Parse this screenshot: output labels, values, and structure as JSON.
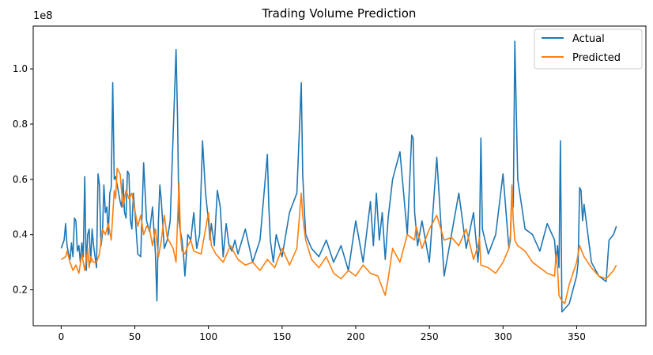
{
  "chart_data": {
    "type": "line",
    "title": "Trading Volume Prediction",
    "xlabel": "",
    "ylabel": "",
    "y_offset_label": "1e8",
    "xlim": [
      -19,
      397
    ],
    "ylim": [
      0.07,
      1.155
    ],
    "x_ticks": [
      0,
      50,
      100,
      150,
      200,
      250,
      300,
      350
    ],
    "x_tick_labels": [
      "0",
      "50",
      "100",
      "150",
      "200",
      "250",
      "300",
      "350"
    ],
    "y_ticks": [
      0.2,
      0.4,
      0.6,
      0.8,
      1.0
    ],
    "y_tick_labels": [
      "0.2",
      "0.4",
      "0.6",
      "0.8",
      "1.0"
    ],
    "legend": {
      "position": "top-right"
    },
    "grid": false,
    "series": [
      {
        "name": "Actual",
        "color": "#1f77b4",
        "x": [
          0,
          2,
          3,
          4,
          5,
          6,
          7,
          8,
          9,
          10,
          11,
          12,
          13,
          14,
          15,
          16,
          17,
          18,
          19,
          20,
          21,
          22,
          23,
          24,
          25,
          26,
          27,
          28,
          29,
          30,
          31,
          32,
          33,
          34,
          35,
          36,
          37,
          38,
          39,
          40,
          41,
          42,
          43,
          44,
          45,
          46,
          47,
          48,
          49,
          50,
          52,
          54,
          56,
          58,
          60,
          62,
          64,
          65,
          66,
          67,
          68,
          70,
          72,
          74,
          76,
          78,
          79,
          80,
          81,
          82,
          83,
          84,
          86,
          88,
          90,
          92,
          94,
          96,
          98,
          100,
          101,
          102,
          104,
          106,
          108,
          110,
          112,
          114,
          116,
          118,
          120,
          125,
          130,
          135,
          140,
          141,
          142,
          143,
          144,
          145,
          146,
          150,
          155,
          160,
          163,
          164,
          165,
          166,
          170,
          175,
          180,
          185,
          190,
          195,
          200,
          205,
          210,
          212,
          214,
          216,
          218,
          220,
          222,
          225,
          230,
          235,
          238,
          239,
          240,
          241,
          242,
          245,
          250,
          255,
          260,
          265,
          270,
          275,
          280,
          283,
          284,
          285,
          286,
          290,
          295,
          300,
          304,
          305,
          306,
          307,
          308,
          310,
          315,
          320,
          325,
          330,
          335,
          336,
          337,
          338,
          339,
          340,
          345,
          350,
          351,
          352,
          353,
          354,
          355,
          360,
          365,
          370,
          372,
          375,
          377
        ],
        "values": [
          0.35,
          0.38,
          0.44,
          0.36,
          0.33,
          0.31,
          0.37,
          0.32,
          0.46,
          0.45,
          0.34,
          0.36,
          0.3,
          0.37,
          0.32,
          0.61,
          0.27,
          0.4,
          0.42,
          0.3,
          0.42,
          0.36,
          0.32,
          0.28,
          0.62,
          0.58,
          0.36,
          0.4,
          0.58,
          0.48,
          0.5,
          0.4,
          0.55,
          0.57,
          0.95,
          0.6,
          0.61,
          0.58,
          0.55,
          0.52,
          0.5,
          0.6,
          0.48,
          0.46,
          0.63,
          0.62,
          0.45,
          0.42,
          0.55,
          0.49,
          0.33,
          0.32,
          0.66,
          0.45,
          0.41,
          0.5,
          0.33,
          0.16,
          0.45,
          0.58,
          0.52,
          0.35,
          0.38,
          0.45,
          0.76,
          1.07,
          0.82,
          0.45,
          0.41,
          0.38,
          0.33,
          0.25,
          0.4,
          0.38,
          0.48,
          0.35,
          0.4,
          0.74,
          0.55,
          0.45,
          0.38,
          0.44,
          0.36,
          0.56,
          0.5,
          0.32,
          0.44,
          0.36,
          0.34,
          0.38,
          0.33,
          0.42,
          0.3,
          0.38,
          0.69,
          0.5,
          0.38,
          0.34,
          0.3,
          0.35,
          0.4,
          0.32,
          0.48,
          0.55,
          0.95,
          0.62,
          0.5,
          0.4,
          0.35,
          0.32,
          0.38,
          0.3,
          0.36,
          0.27,
          0.45,
          0.3,
          0.52,
          0.36,
          0.55,
          0.38,
          0.48,
          0.31,
          0.46,
          0.6,
          0.7,
          0.4,
          0.76,
          0.75,
          0.48,
          0.42,
          0.36,
          0.45,
          0.3,
          0.68,
          0.25,
          0.4,
          0.55,
          0.35,
          0.48,
          0.3,
          0.38,
          0.75,
          0.42,
          0.33,
          0.4,
          0.62,
          0.35,
          0.38,
          0.55,
          0.5,
          1.1,
          0.6,
          0.42,
          0.4,
          0.34,
          0.44,
          0.38,
          0.3,
          0.36,
          0.28,
          0.74,
          0.12,
          0.15,
          0.25,
          0.3,
          0.57,
          0.56,
          0.45,
          0.51,
          0.3,
          0.25,
          0.23,
          0.38,
          0.4,
          0.43
        ]
      },
      {
        "name": "Predicted",
        "color": "#ff7f0e",
        "x": [
          0,
          3,
          4,
          6,
          8,
          10,
          12,
          14,
          16,
          18,
          19,
          20,
          22,
          24,
          26,
          28,
          30,
          32,
          34,
          36,
          37,
          38,
          40,
          42,
          44,
          46,
          48,
          50,
          52,
          54,
          56,
          58,
          60,
          62,
          64,
          66,
          68,
          70,
          72,
          74,
          76,
          78,
          80,
          81,
          82,
          84,
          86,
          88,
          90,
          95,
          100,
          101,
          102,
          105,
          110,
          115,
          120,
          125,
          130,
          135,
          140,
          145,
          150,
          155,
          160,
          163,
          164,
          165,
          166,
          170,
          175,
          180,
          185,
          190,
          195,
          200,
          205,
          210,
          215,
          220,
          221,
          222,
          225,
          230,
          235,
          240,
          241,
          242,
          245,
          250,
          255,
          260,
          265,
          270,
          275,
          280,
          283,
          284,
          285,
          290,
          295,
          300,
          304,
          305,
          306,
          307,
          308,
          310,
          315,
          320,
          325,
          330,
          335,
          336,
          337,
          338,
          340,
          342,
          345,
          350,
          352,
          355,
          360,
          365,
          370,
          375,
          377
        ],
        "values": [
          0.31,
          0.32,
          0.34,
          0.3,
          0.27,
          0.29,
          0.26,
          0.33,
          0.27,
          0.35,
          0.28,
          0.32,
          0.3,
          0.3,
          0.33,
          0.42,
          0.4,
          0.44,
          0.38,
          0.56,
          0.53,
          0.64,
          0.62,
          0.5,
          0.56,
          0.53,
          0.55,
          0.49,
          0.43,
          0.47,
          0.4,
          0.43,
          0.42,
          0.36,
          0.42,
          0.32,
          0.38,
          0.47,
          0.39,
          0.37,
          0.35,
          0.3,
          0.59,
          0.4,
          0.34,
          0.33,
          0.36,
          0.38,
          0.34,
          0.33,
          0.48,
          0.41,
          0.36,
          0.33,
          0.3,
          0.36,
          0.31,
          0.29,
          0.3,
          0.27,
          0.31,
          0.28,
          0.35,
          0.29,
          0.35,
          0.55,
          0.47,
          0.42,
          0.38,
          0.31,
          0.28,
          0.32,
          0.26,
          0.24,
          0.27,
          0.25,
          0.29,
          0.26,
          0.25,
          0.18,
          0.21,
          0.24,
          0.35,
          0.3,
          0.4,
          0.38,
          0.43,
          0.41,
          0.35,
          0.42,
          0.47,
          0.38,
          0.39,
          0.36,
          0.42,
          0.31,
          0.36,
          0.39,
          0.29,
          0.28,
          0.26,
          0.3,
          0.35,
          0.4,
          0.58,
          0.45,
          0.38,
          0.36,
          0.34,
          0.3,
          0.28,
          0.26,
          0.25,
          0.33,
          0.28,
          0.18,
          0.16,
          0.15,
          0.22,
          0.3,
          0.36,
          0.32,
          0.28,
          0.25,
          0.24,
          0.27,
          0.29
        ]
      }
    ]
  }
}
